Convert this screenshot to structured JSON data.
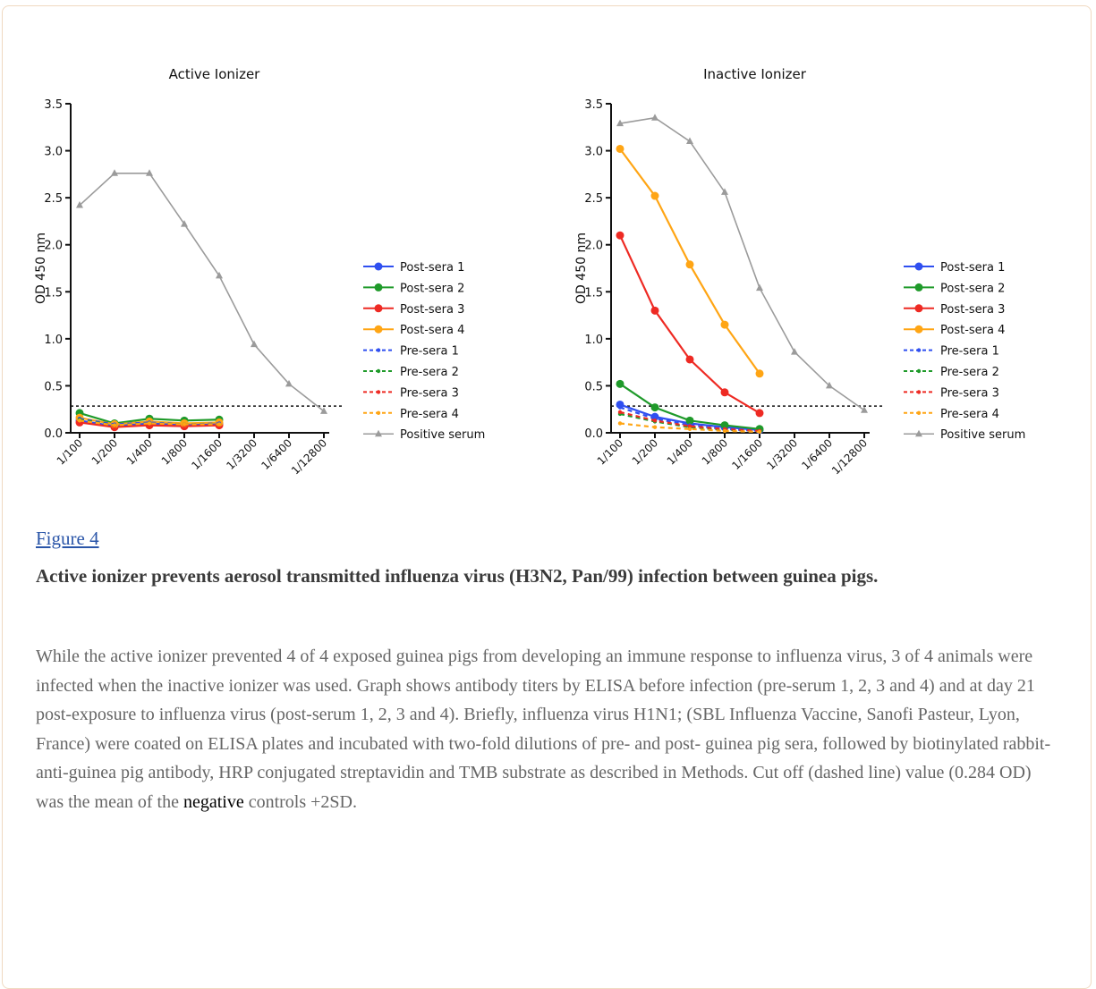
{
  "figure": {
    "link_label": "Figure 4",
    "title": "Active ionizer prevents aerosol transmitted influenza virus (H3N2, Pan/99) infection between guinea pigs.",
    "text_before": "While the active ionizer prevented 4 of 4 exposed guinea pigs from developing an immune response to influenza virus, 3 of 4 animals were infected when the inactive ionizer was used. Graph shows antibody titers by ELISA before infection (pre-serum 1, 2, 3 and 4) and at day 21 post-exposure to influenza virus (post-serum 1, 2, 3 and 4). Briefly, influenza virus H1N1; (SBL Influenza Vaccine, Sanofi Pasteur, Lyon, France) were coated on ELISA plates and incubated with two-fold dilutions of pre- and post- guinea pig sera, followed by biotinylated rabbit-anti-guinea pig antibody, HRP conjugated streptavidin and TMB substrate as described in Methods. Cut off (dashed line) value (0.284 OD) was the mean of the ",
    "text_highlight": "negative",
    "text_after": " controls +2SD."
  },
  "chart_data": [
    {
      "type": "line",
      "title": "Active Ionizer",
      "xlabel": "",
      "ylabel": "OD 450 nm",
      "ylim": [
        0,
        3.5
      ],
      "yticks": [
        "0.0",
        "0.5",
        "1.0",
        "1.5",
        "2.0",
        "2.5",
        "3.0",
        "3.5"
      ],
      "categories": [
        "1/100",
        "1/200",
        "1/400",
        "1/800",
        "1/1600",
        "1/3200",
        "1/6400",
        "1/12800"
      ],
      "cutoff": 0.284,
      "legend_position": "right",
      "series": [
        {
          "name": "Post-sera 1",
          "color": "#2f4ff0",
          "style": "solid",
          "marker": "circle",
          "values": [
            0.13,
            0.07,
            0.1,
            0.08,
            0.1,
            null,
            null,
            null
          ]
        },
        {
          "name": "Post-sera 2",
          "color": "#1f9a2a",
          "style": "solid",
          "marker": "circle",
          "values": [
            0.21,
            0.1,
            0.15,
            0.13,
            0.14,
            null,
            null,
            null
          ]
        },
        {
          "name": "Post-sera 3",
          "color": "#ee2a23",
          "style": "solid",
          "marker": "circle",
          "values": [
            0.11,
            0.06,
            0.08,
            0.07,
            0.08,
            null,
            null,
            null
          ]
        },
        {
          "name": "Post-sera 4",
          "color": "#ffa514",
          "style": "solid",
          "marker": "circle",
          "values": [
            0.16,
            0.09,
            0.12,
            0.1,
            0.11,
            null,
            null,
            null
          ]
        },
        {
          "name": "Pre-sera 1",
          "color": "#2f4ff0",
          "style": "dashed",
          "marker": "dot",
          "values": [
            0.15,
            0.09,
            0.11,
            0.09,
            0.1,
            null,
            null,
            null
          ]
        },
        {
          "name": "Pre-sera 2",
          "color": "#1f9a2a",
          "style": "dashed",
          "marker": "dot",
          "values": [
            0.14,
            0.08,
            0.1,
            0.09,
            0.09,
            null,
            null,
            null
          ]
        },
        {
          "name": "Pre-sera 3",
          "color": "#ee2a23",
          "style": "dashed",
          "marker": "dot",
          "values": [
            0.12,
            0.07,
            0.09,
            0.08,
            0.09,
            null,
            null,
            null
          ]
        },
        {
          "name": "Pre-sera 4",
          "color": "#ffa514",
          "style": "dashed",
          "marker": "dot",
          "values": [
            0.13,
            0.08,
            0.1,
            0.09,
            0.09,
            null,
            null,
            null
          ]
        },
        {
          "name": "Positive serum",
          "color": "#9b9b9b",
          "style": "solid",
          "marker": "triangle",
          "values": [
            2.42,
            2.76,
            2.76,
            2.22,
            1.67,
            0.94,
            0.52,
            0.23
          ]
        }
      ]
    },
    {
      "type": "line",
      "title": "Inactive Ionizer",
      "xlabel": "",
      "ylabel": "OD 450 nm",
      "ylim": [
        0,
        3.5
      ],
      "yticks": [
        "0.0",
        "0.5",
        "1.0",
        "1.5",
        "2.0",
        "2.5",
        "3.0",
        "3.5"
      ],
      "categories": [
        "1/100",
        "1/200",
        "1/400",
        "1/800",
        "1/1600",
        "1/3200",
        "1/6400",
        "1/12800"
      ],
      "cutoff": 0.284,
      "legend_position": "right",
      "series": [
        {
          "name": "Post-sera 1",
          "color": "#2f4ff0",
          "style": "solid",
          "marker": "circle",
          "values": [
            0.3,
            0.17,
            0.1,
            0.06,
            0.03,
            null,
            null,
            null
          ]
        },
        {
          "name": "Post-sera 2",
          "color": "#1f9a2a",
          "style": "solid",
          "marker": "circle",
          "values": [
            0.52,
            0.27,
            0.13,
            0.08,
            0.04,
            null,
            null,
            null
          ]
        },
        {
          "name": "Post-sera 3",
          "color": "#ee2a23",
          "style": "solid",
          "marker": "circle",
          "values": [
            2.1,
            1.3,
            0.78,
            0.43,
            0.21,
            null,
            null,
            null
          ]
        },
        {
          "name": "Post-sera 4",
          "color": "#ffa514",
          "style": "solid",
          "marker": "circle",
          "values": [
            3.02,
            2.52,
            1.79,
            1.15,
            0.63,
            null,
            null,
            null
          ]
        },
        {
          "name": "Pre-sera 1",
          "color": "#2f4ff0",
          "style": "dashed",
          "marker": "dot",
          "values": [
            0.27,
            0.15,
            0.08,
            0.04,
            0.02,
            null,
            null,
            null
          ]
        },
        {
          "name": "Pre-sera 2",
          "color": "#1f9a2a",
          "style": "dashed",
          "marker": "dot",
          "values": [
            0.2,
            0.12,
            0.06,
            0.03,
            0.02,
            null,
            null,
            null
          ]
        },
        {
          "name": "Pre-sera 3",
          "color": "#ee2a23",
          "style": "dashed",
          "marker": "dot",
          "values": [
            0.22,
            0.13,
            0.07,
            0.04,
            0.02,
            null,
            null,
            null
          ]
        },
        {
          "name": "Pre-sera 4",
          "color": "#ffa514",
          "style": "dashed",
          "marker": "dot",
          "values": [
            0.1,
            0.06,
            0.04,
            0.02,
            0.01,
            null,
            null,
            null
          ]
        },
        {
          "name": "Positive serum",
          "color": "#9b9b9b",
          "style": "solid",
          "marker": "triangle",
          "values": [
            3.29,
            3.35,
            3.1,
            2.56,
            1.54,
            0.86,
            0.5,
            0.24
          ]
        }
      ]
    }
  ]
}
